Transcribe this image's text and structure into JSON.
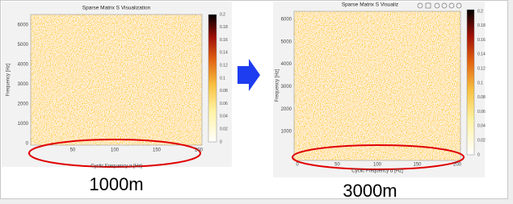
{
  "left": {
    "title": "Sparse Matrix S Visualization",
    "y_label": "Frequency [Hz]",
    "x_label": "Cyclic Frequency α [Hz]",
    "y_ticks": [
      "6000",
      "5000",
      "4000",
      "3000",
      "2000",
      "1000",
      "0"
    ],
    "x_ticks": [
      "50",
      "100",
      "150",
      "200"
    ],
    "colorbar_ticks": [
      "0.2",
      "0.18",
      "0.16",
      "0.14",
      "0.12",
      "0.1",
      "0.08",
      "0.06",
      "0.04",
      "0.02",
      "0"
    ],
    "caption": "1000m"
  },
  "right": {
    "title": "Sparse Matrix S Visualiz",
    "y_label": "Frequency [Hz]",
    "x_label": "Cyclic Frequency α [Hz]",
    "y_ticks": [
      "6000",
      "5000",
      "4000",
      "3000",
      "2000",
      "1000"
    ],
    "x_ticks": [
      "0",
      "50",
      "100",
      "150",
      "200"
    ],
    "colorbar_ticks": [
      "0.2",
      "0.18",
      "0.16",
      "0.14",
      "0.12",
      "0.1",
      "0.08",
      "0.06",
      "0.04",
      "0.02",
      "0"
    ],
    "caption": "3000m"
  }
}
